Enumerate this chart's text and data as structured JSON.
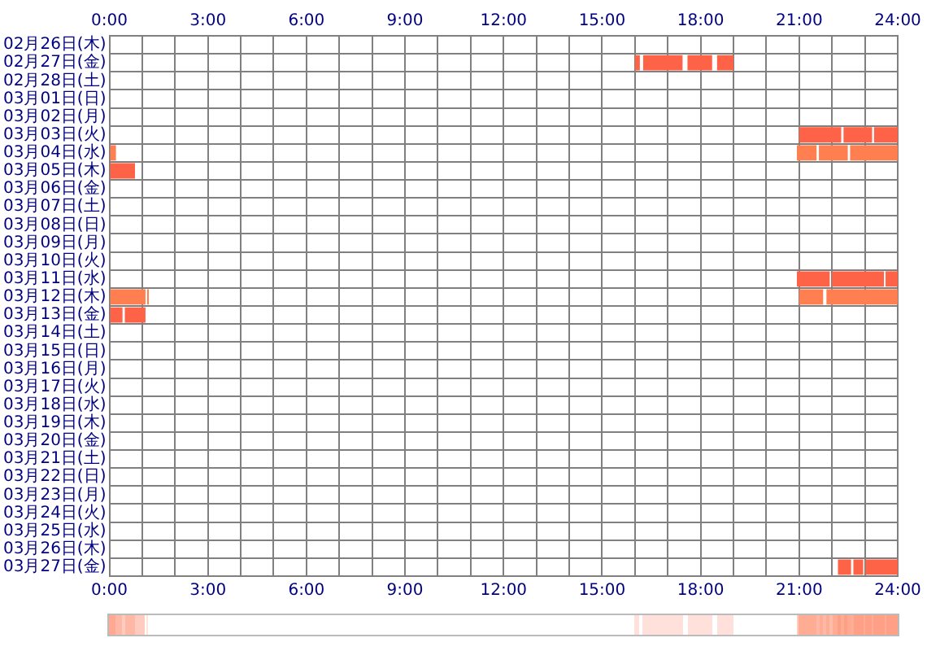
{
  "chart_data": {
    "type": "bar",
    "orientation": "horizontal",
    "grid": true,
    "legend": false,
    "categories": [
      "02月26日(木)",
      "02月27日(金)",
      "02月28日(土)",
      "03月01日(日)",
      "03月02日(月)",
      "03月03日(火)",
      "03月04日(水)",
      "03月05日(木)",
      "03月06日(金)",
      "03月07日(土)",
      "03月08日(日)",
      "03月09日(月)",
      "03月10日(火)",
      "03月11日(水)",
      "03月12日(木)",
      "03月13日(金)",
      "03月14日(土)",
      "03月15日(日)",
      "03月16日(月)",
      "03月17日(火)",
      "03月18日(水)",
      "03月19日(木)",
      "03月20日(金)",
      "03月21日(土)",
      "03月22日(日)",
      "03月23日(月)",
      "03月24日(火)",
      "03月25日(水)",
      "03月26日(木)",
      "03月27日(金)"
    ],
    "series": [
      {
        "base": [
          null,
          16.0,
          null,
          null,
          null,
          21.0,
          0,
          0,
          null,
          null,
          null,
          null,
          null,
          20.93,
          0,
          0,
          null,
          null,
          null,
          null,
          null,
          null,
          null,
          null,
          null,
          null,
          null,
          null,
          null,
          22.18
        ],
        "values": [
          null,
          0.15,
          null,
          null,
          null,
          1.28,
          0.2,
          0.78,
          null,
          null,
          null,
          null,
          null,
          1.0,
          1.1,
          0.4,
          null,
          null,
          null,
          null,
          null,
          null,
          null,
          null,
          null,
          null,
          null,
          null,
          null,
          0.4
        ],
        "colors": [
          null,
          "#ff6347",
          null,
          null,
          null,
          "#ff6347",
          "#ff7f50",
          "#ff6347",
          null,
          null,
          null,
          null,
          null,
          "#ff6347",
          "#ff7f50",
          "#ff6347",
          null,
          null,
          null,
          null,
          null,
          null,
          null,
          null,
          null,
          null,
          null,
          null,
          null,
          "#ff6347"
        ]
      },
      {
        "base": [
          null,
          16.25,
          null,
          null,
          null,
          22.35,
          20.93,
          null,
          null,
          null,
          null,
          null,
          null,
          22.0,
          1.15,
          0.47,
          null,
          null,
          null,
          null,
          null,
          null,
          null,
          null,
          null,
          null,
          null,
          null,
          null,
          22.65
        ],
        "values": [
          null,
          1.2,
          null,
          null,
          null,
          0.87,
          0.6,
          null,
          null,
          null,
          null,
          null,
          null,
          1.58,
          0.05,
          0.63,
          null,
          null,
          null,
          null,
          null,
          null,
          null,
          null,
          null,
          null,
          null,
          null,
          null,
          0.3
        ],
        "colors": [
          null,
          "#ff6347",
          null,
          null,
          null,
          "#ff6347",
          "#ff7f50",
          null,
          null,
          null,
          null,
          null,
          null,
          "#ff6347",
          "#ff7f50",
          "#ff6347",
          null,
          null,
          null,
          null,
          null,
          null,
          null,
          null,
          null,
          null,
          null,
          null,
          null,
          "#ff6347"
        ]
      },
      {
        "base": [
          null,
          17.6,
          null,
          null,
          null,
          23.28,
          21.6,
          null,
          null,
          null,
          null,
          null,
          null,
          23.63,
          21.0,
          null,
          null,
          null,
          null,
          null,
          null,
          null,
          null,
          null,
          null,
          null,
          null,
          null,
          null,
          23.02
        ],
        "values": [
          null,
          0.75,
          null,
          null,
          null,
          0.72,
          0.88,
          null,
          null,
          null,
          null,
          null,
          null,
          0.37,
          0.73,
          null,
          null,
          null,
          null,
          null,
          null,
          null,
          null,
          null,
          null,
          null,
          null,
          null,
          null,
          0.98
        ],
        "colors": [
          null,
          "#ff6347",
          null,
          null,
          null,
          "#ff6347",
          "#ff7f50",
          null,
          null,
          null,
          null,
          null,
          null,
          "#ff6347",
          "#ff7f50",
          null,
          null,
          null,
          null,
          null,
          null,
          null,
          null,
          null,
          null,
          null,
          null,
          null,
          null,
          "#ff6347"
        ]
      },
      {
        "base": [
          null,
          18.5,
          null,
          null,
          null,
          null,
          22.55,
          null,
          null,
          null,
          null,
          null,
          null,
          null,
          21.83,
          null,
          null,
          null,
          null,
          null,
          null,
          null,
          null,
          null,
          null,
          null,
          null,
          null,
          null,
          null
        ],
        "values": [
          null,
          0.5,
          null,
          null,
          null,
          null,
          1.45,
          null,
          null,
          null,
          null,
          null,
          null,
          null,
          2.17,
          null,
          null,
          null,
          null,
          null,
          null,
          null,
          null,
          null,
          null,
          null,
          null,
          null,
          null,
          null
        ],
        "colors": [
          null,
          "#ff6347",
          null,
          null,
          null,
          null,
          "#ff7f50",
          null,
          null,
          null,
          null,
          null,
          null,
          null,
          "#ff7f50",
          null,
          null,
          null,
          null,
          null,
          null,
          null,
          null,
          null,
          null,
          null,
          null,
          null,
          null,
          null
        ]
      }
    ],
    "xlim": [
      0,
      24
    ],
    "xticks": [
      {
        "value": 0,
        "label": "0:00"
      },
      {
        "value": 1,
        "label": null
      },
      {
        "value": 2,
        "label": null
      },
      {
        "value": 3,
        "label": "3:00"
      },
      {
        "value": 4,
        "label": null
      },
      {
        "value": 5,
        "label": null
      },
      {
        "value": 6,
        "label": "6:00"
      },
      {
        "value": 7,
        "label": null
      },
      {
        "value": 8,
        "label": null
      },
      {
        "value": 9,
        "label": "9:00"
      },
      {
        "value": 10,
        "label": null
      },
      {
        "value": 11,
        "label": null
      },
      {
        "value": 12,
        "label": "12:00"
      },
      {
        "value": 13,
        "label": null
      },
      {
        "value": 14,
        "label": null
      },
      {
        "value": 15,
        "label": "15:00"
      },
      {
        "value": 16,
        "label": null
      },
      {
        "value": 17,
        "label": null
      },
      {
        "value": 18,
        "label": "18:00"
      },
      {
        "value": 19,
        "label": null
      },
      {
        "value": 20,
        "label": null
      },
      {
        "value": 21,
        "label": "21:00"
      },
      {
        "value": 22,
        "label": null
      },
      {
        "value": 23,
        "label": null
      },
      {
        "value": 24,
        "label": "24:00"
      }
    ],
    "x2lim": [
      0,
      24
    ],
    "x2ticks": [
      {
        "value": 0,
        "label": "0:00"
      },
      {
        "value": 1,
        "label": null
      },
      {
        "value": 2,
        "label": null
      },
      {
        "value": 3,
        "label": "3:00"
      },
      {
        "value": 4,
        "label": null
      },
      {
        "value": 5,
        "label": null
      },
      {
        "value": 6,
        "label": "6:00"
      },
      {
        "value": 7,
        "label": null
      },
      {
        "value": 8,
        "label": null
      },
      {
        "value": 9,
        "label": "9:00"
      },
      {
        "value": 10,
        "label": null
      },
      {
        "value": 11,
        "label": null
      },
      {
        "value": 12,
        "label": "12:00"
      },
      {
        "value": 13,
        "label": null
      },
      {
        "value": 14,
        "label": null
      },
      {
        "value": 15,
        "label": "15:00"
      },
      {
        "value": 16,
        "label": null
      },
      {
        "value": 17,
        "label": null
      },
      {
        "value": 18,
        "label": "18:00"
      },
      {
        "value": 19,
        "label": null
      },
      {
        "value": 20,
        "label": null
      },
      {
        "value": 21,
        "label": "21:00"
      },
      {
        "value": 22,
        "label": null
      },
      {
        "value": 23,
        "label": null
      },
      {
        "value": 24,
        "label": "24:00"
      }
    ]
  }
}
